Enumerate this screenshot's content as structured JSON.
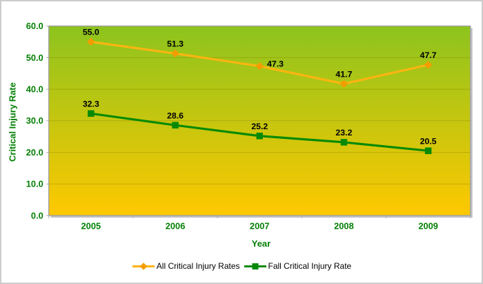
{
  "chart_data": {
    "type": "line",
    "title": "",
    "categories": [
      "2005",
      "2006",
      "2007",
      "2008",
      "2009"
    ],
    "series": [
      {
        "name": "All Critical Injury Rates",
        "values": [
          55.0,
          51.3,
          47.3,
          41.7,
          47.7
        ],
        "labels": [
          "55.0",
          "51.3",
          "47.3",
          "41.7",
          "47.7"
        ],
        "marker": "diamond",
        "line_color": "#FFB411",
        "marker_color": "#F59C00",
        "label_dx": [
          0,
          0,
          23,
          0,
          0
        ],
        "label_dy": [
          0,
          0,
          11,
          0,
          0
        ]
      },
      {
        "name": "Fall Critical Injury Rate",
        "values": [
          32.3,
          28.6,
          25.2,
          23.2,
          20.5
        ],
        "labels": [
          "32.3",
          "28.6",
          "25.2",
          "23.2",
          "20.5"
        ],
        "marker": "square",
        "line_color": "#068A06",
        "marker_color": "#068A06",
        "label_dx": [
          0,
          0,
          0,
          0,
          0
        ],
        "label_dy": [
          0,
          0,
          0,
          0,
          0
        ]
      }
    ],
    "xlabel": "Year",
    "ylabel": "Critical Injury Rate",
    "ylim": [
      0,
      60
    ],
    "ytick_step": 10,
    "ytick_labels": [
      "0.0",
      "10.0",
      "20.0",
      "30.0",
      "40.0",
      "50.0",
      "60.0"
    ],
    "grid": true,
    "legend_position": "bottom",
    "show_data_labels": true,
    "colors": {
      "plot_bg_top": "#8CC41E",
      "plot_bg_bottom": "#FFC800",
      "plot_border": "#A3A3A3",
      "shadow": "#C2C2C6",
      "gridline": "#8A8000",
      "tick": "#ACACAC",
      "axis_text": "#048004",
      "data_label": "#000000",
      "legend_text": "#000000"
    }
  }
}
